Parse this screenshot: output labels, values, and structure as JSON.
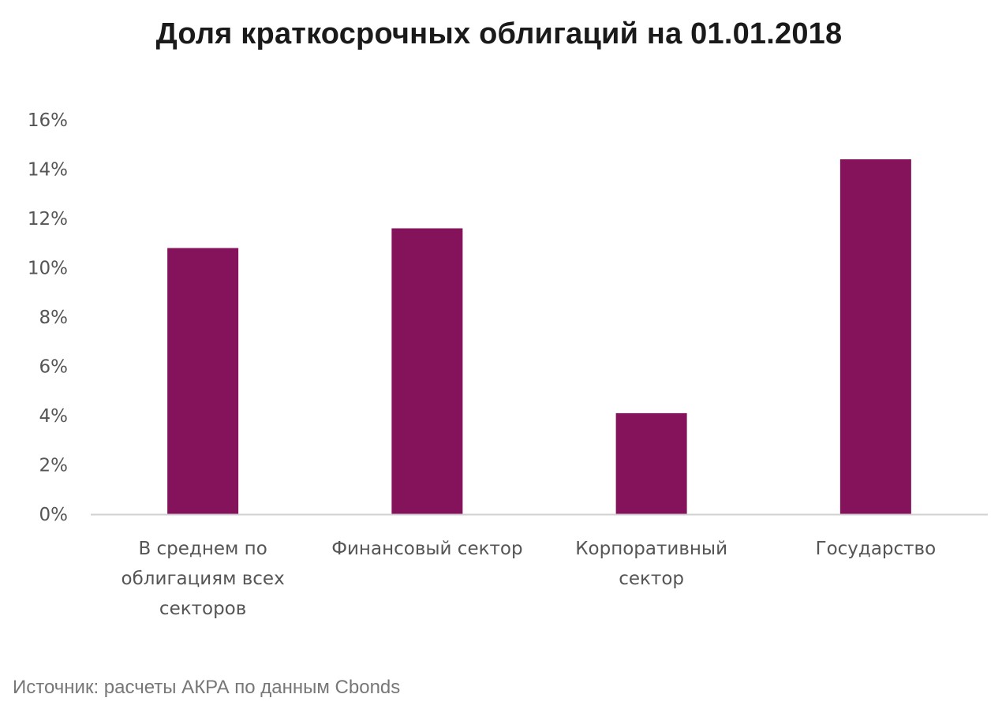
{
  "chart_data": {
    "type": "bar",
    "title": "Доля краткосрочных облигаций на 01.01.2018",
    "categories": [
      [
        "В среднем по",
        "облигациям всех",
        "секторов"
      ],
      [
        "Финансовый сектор"
      ],
      [
        "Корпоративный",
        "сектор"
      ],
      [
        "Государство"
      ]
    ],
    "values": [
      10.8,
      11.6,
      4.1,
      14.4
    ],
    "ylim": [
      0,
      16
    ],
    "yticks": [
      0,
      2,
      4,
      6,
      8,
      10,
      12,
      14,
      16
    ],
    "ytick_suffix": "%",
    "grid": false,
    "legend": "none",
    "bar_color": "#84135C",
    "axis_color": "#d0d0d0"
  },
  "source": "Источник: расчеты АКРА по данным Cbonds"
}
